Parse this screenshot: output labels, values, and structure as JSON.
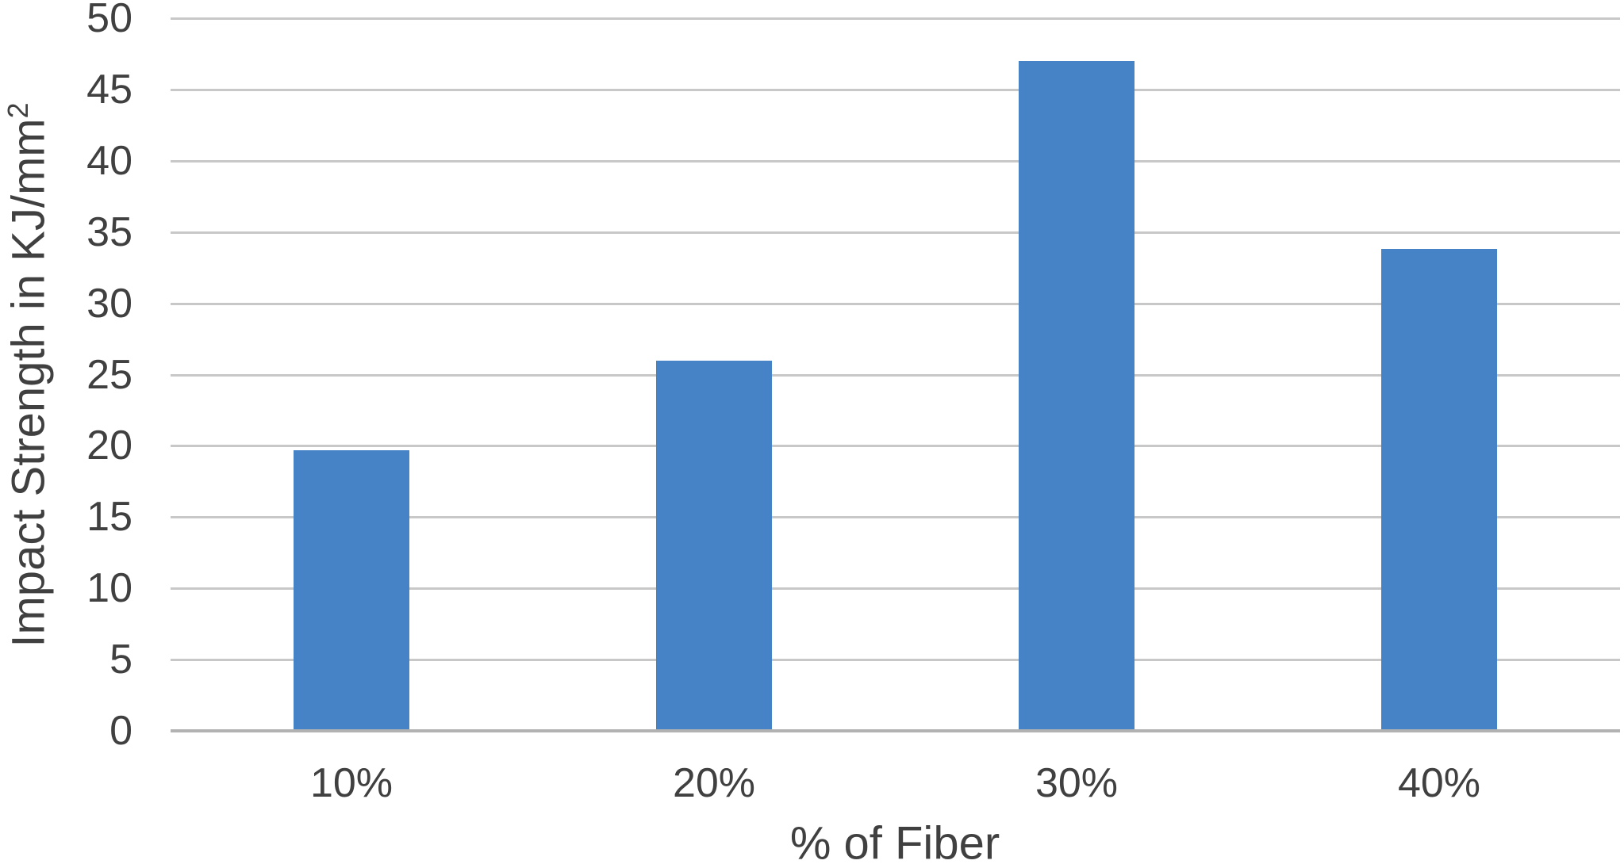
{
  "chart_data": {
    "type": "bar",
    "categories": [
      "10%",
      "20%",
      "30%",
      "40%"
    ],
    "values": [
      19.7,
      26,
      47,
      33.8
    ],
    "xlabel": "% of Fiber",
    "ylabel": "Impact Strength in KJ/mm²",
    "ylim": [
      0,
      50
    ],
    "yticks": [
      0,
      5,
      10,
      15,
      20,
      25,
      30,
      35,
      40,
      45,
      50
    ],
    "grid": "horizontal",
    "legend": "none"
  },
  "axes": {
    "y_title_base": "Impact Strength in KJ/mm",
    "y_title_sup": "2",
    "x_title": "% of Fiber"
  },
  "colors": {
    "bar": "#4682c6",
    "gridline": "#c8c8c8",
    "axis_line": "#b2b2b2",
    "text": "#404040",
    "background": "#ffffff"
  }
}
